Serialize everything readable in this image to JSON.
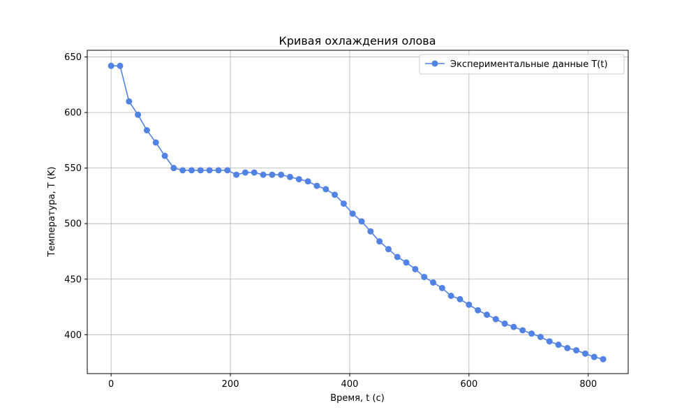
{
  "chart_data": {
    "type": "line",
    "title": "Кривая охлаждения олова",
    "xlabel": "Время, t (c)",
    "ylabel": "Температура, T (K)",
    "xlim": [
      -40,
      867
    ],
    "ylim": [
      365,
      656
    ],
    "xticks": [
      0,
      200,
      400,
      600,
      800
    ],
    "yticks": [
      400,
      450,
      500,
      550,
      600,
      650
    ],
    "grid": true,
    "legend_position": "top-right",
    "series": [
      {
        "name": "Экспериментальные данные T(t)",
        "color": "#5282e3",
        "marker": "circle",
        "x": [
          0,
          15,
          30,
          45,
          60,
          75,
          90,
          105,
          120,
          135,
          150,
          165,
          180,
          195,
          210,
          225,
          240,
          255,
          270,
          285,
          300,
          315,
          330,
          345,
          360,
          375,
          390,
          405,
          420,
          435,
          450,
          465,
          480,
          495,
          510,
          525,
          540,
          555,
          570,
          585,
          600,
          615,
          630,
          645,
          660,
          675,
          690,
          705,
          720,
          735,
          750,
          765,
          780,
          795,
          810,
          825
        ],
        "y": [
          642,
          642,
          610,
          598,
          584,
          573,
          561,
          550,
          548,
          548,
          548,
          548,
          548,
          548,
          544,
          546,
          546,
          544,
          544,
          544,
          542,
          540,
          538,
          534,
          531,
          526,
          518,
          509,
          502,
          493,
          484,
          477,
          470,
          465,
          459,
          452,
          447,
          442,
          435,
          432,
          427,
          422,
          418,
          414,
          410,
          407,
          404,
          401,
          398,
          394,
          391,
          388,
          386,
          383,
          380,
          378
        ]
      }
    ]
  }
}
